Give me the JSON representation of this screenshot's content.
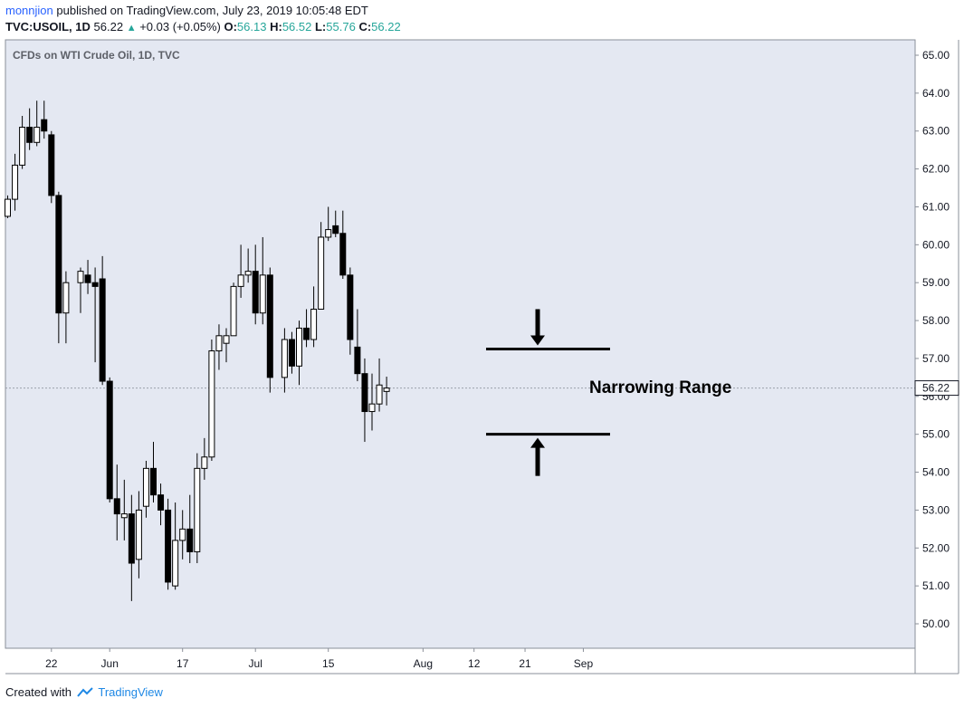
{
  "header": {
    "user": "monnjion",
    "published_text": "published on TradingView.com, July 23, 2019 10:05:48 EDT",
    "symbol": "TVC:USOIL, 1D",
    "last": "56.22",
    "change": "+0.03 (+0.05%)",
    "o_label": "O:",
    "o_value": "56.13",
    "h_label": "H:",
    "h_value": "56.52",
    "l_label": "L:",
    "l_value": "55.76",
    "c_label": "C:",
    "c_value": "56.22"
  },
  "footer": {
    "created_with": "Created with",
    "brand": "TradingView"
  },
  "colors": {
    "background": "#e4e8f2",
    "candle": "#000000",
    "value_up": "#26a69a",
    "link": "#2962ff"
  },
  "chart_data": {
    "type": "candlestick",
    "title": "CFDs on WTI Crude Oil, 1D, TVC",
    "ylim": [
      49.4,
      65.5
    ],
    "y_ticks": [
      50,
      51,
      52,
      53,
      54,
      55,
      56,
      57,
      58,
      59,
      60,
      61,
      62,
      63,
      64,
      65
    ],
    "y_tick_labels": [
      "50.00",
      "51.00",
      "52.00",
      "53.00",
      "54.00",
      "55.00",
      "56.00",
      "57.00",
      "58.00",
      "59.00",
      "60.00",
      "61.00",
      "62.00",
      "63.00",
      "64.00",
      "65.00"
    ],
    "x_tick_labels": [
      {
        "label": "22",
        "date": "2019-05-22"
      },
      {
        "label": "Jun",
        "date": "2019-06-03"
      },
      {
        "label": "17",
        "date": "2019-06-17"
      },
      {
        "label": "Jul",
        "date": "2019-07-01"
      },
      {
        "label": "15",
        "date": "2019-07-15"
      },
      {
        "label": "Aug",
        "date": "2019-08-01"
      },
      {
        "label": "12",
        "date": "2019-08-12"
      },
      {
        "label": "21",
        "date": "2019-08-21"
      },
      {
        "label": "Sep",
        "date": "2019-09-02"
      }
    ],
    "last_price": 56.22,
    "last_price_label": "56.22",
    "annotation": {
      "text": "Narrowing Range",
      "upper_level": 57.25,
      "lower_level": 55.0
    },
    "candles": [
      {
        "date": "2019-05-14",
        "o": 60.75,
        "h": 61.3,
        "l": 60.7,
        "c": 61.2
      },
      {
        "date": "2019-05-15",
        "o": 61.2,
        "h": 62.4,
        "l": 60.9,
        "c": 62.1
      },
      {
        "date": "2019-05-16",
        "o": 62.1,
        "h": 63.4,
        "l": 62.0,
        "c": 63.1
      },
      {
        "date": "2019-05-17",
        "o": 63.1,
        "h": 63.6,
        "l": 62.5,
        "c": 62.7
      },
      {
        "date": "2019-05-20",
        "o": 62.7,
        "h": 63.8,
        "l": 62.6,
        "c": 63.1
      },
      {
        "date": "2019-05-21",
        "o": 63.3,
        "h": 63.8,
        "l": 62.8,
        "c": 63.0
      },
      {
        "date": "2019-05-22",
        "o": 62.9,
        "h": 63.0,
        "l": 61.1,
        "c": 61.3
      },
      {
        "date": "2019-05-23",
        "o": 61.3,
        "h": 61.4,
        "l": 57.4,
        "c": 58.2
      },
      {
        "date": "2019-05-24",
        "o": 58.2,
        "h": 59.3,
        "l": 57.4,
        "c": 59.0
      },
      {
        "date": "2019-05-28",
        "o": 59.0,
        "h": 59.4,
        "l": 58.2,
        "c": 59.3
      },
      {
        "date": "2019-05-29",
        "o": 59.2,
        "h": 59.6,
        "l": 58.7,
        "c": 59.0
      },
      {
        "date": "2019-05-30",
        "o": 59.0,
        "h": 59.4,
        "l": 56.9,
        "c": 58.9
      },
      {
        "date": "2019-05-31",
        "o": 59.1,
        "h": 59.7,
        "l": 56.3,
        "c": 56.4
      },
      {
        "date": "2019-06-03",
        "o": 56.4,
        "h": 56.5,
        "l": 53.2,
        "c": 53.3
      },
      {
        "date": "2019-06-04",
        "o": 53.3,
        "h": 54.2,
        "l": 52.2,
        "c": 52.9
      },
      {
        "date": "2019-06-05",
        "o": 52.8,
        "h": 53.8,
        "l": 52.2,
        "c": 52.9
      },
      {
        "date": "2019-06-06",
        "o": 52.9,
        "h": 53.4,
        "l": 50.6,
        "c": 51.6
      },
      {
        "date": "2019-06-07",
        "o": 51.7,
        "h": 53.5,
        "l": 51.2,
        "c": 53.0
      },
      {
        "date": "2019-06-10",
        "o": 53.1,
        "h": 54.3,
        "l": 52.8,
        "c": 54.1
      },
      {
        "date": "2019-06-11",
        "o": 54.1,
        "h": 54.8,
        "l": 53.2,
        "c": 53.4
      },
      {
        "date": "2019-06-12",
        "o": 53.4,
        "h": 53.7,
        "l": 52.6,
        "c": 53.0
      },
      {
        "date": "2019-06-13",
        "o": 53.0,
        "h": 53.3,
        "l": 50.9,
        "c": 51.1
      },
      {
        "date": "2019-06-14",
        "o": 51.0,
        "h": 53.2,
        "l": 50.9,
        "c": 52.2
      },
      {
        "date": "2019-06-17",
        "o": 52.2,
        "h": 53.0,
        "l": 51.7,
        "c": 52.5
      },
      {
        "date": "2019-06-18",
        "o": 52.5,
        "h": 53.4,
        "l": 51.6,
        "c": 51.9
      },
      {
        "date": "2019-06-19",
        "o": 51.9,
        "h": 54.5,
        "l": 51.6,
        "c": 54.1
      },
      {
        "date": "2019-06-20",
        "o": 54.1,
        "h": 54.9,
        "l": 53.8,
        "c": 54.4
      },
      {
        "date": "2019-06-21",
        "o": 54.4,
        "h": 57.5,
        "l": 54.3,
        "c": 57.2
      },
      {
        "date": "2019-06-24",
        "o": 57.2,
        "h": 57.9,
        "l": 56.7,
        "c": 57.6
      },
      {
        "date": "2019-06-25",
        "o": 57.4,
        "h": 57.8,
        "l": 56.9,
        "c": 57.6
      },
      {
        "date": "2019-06-26",
        "o": 57.6,
        "h": 59.0,
        "l": 57.6,
        "c": 58.9
      },
      {
        "date": "2019-06-27",
        "o": 58.9,
        "h": 60.0,
        "l": 58.6,
        "c": 59.2
      },
      {
        "date": "2019-06-28",
        "o": 59.2,
        "h": 59.9,
        "l": 59.0,
        "c": 59.3
      },
      {
        "date": "2019-07-01",
        "o": 59.3,
        "h": 60.0,
        "l": 57.9,
        "c": 58.2
      },
      {
        "date": "2019-07-02",
        "o": 58.2,
        "h": 60.2,
        "l": 57.9,
        "c": 59.2
      },
      {
        "date": "2019-07-03",
        "o": 59.2,
        "h": 59.4,
        "l": 56.1,
        "c": 56.5
      },
      {
        "date": "2019-07-05",
        "o": 56.5,
        "h": 57.8,
        "l": 56.1,
        "c": 57.5
      },
      {
        "date": "2019-07-08",
        "o": 57.5,
        "h": 57.7,
        "l": 56.6,
        "c": 56.8
      },
      {
        "date": "2019-07-09",
        "o": 56.8,
        "h": 58.0,
        "l": 56.3,
        "c": 57.8
      },
      {
        "date": "2019-07-10",
        "o": 57.8,
        "h": 58.3,
        "l": 57.3,
        "c": 57.5
      },
      {
        "date": "2019-07-11",
        "o": 57.5,
        "h": 58.9,
        "l": 57.3,
        "c": 58.3
      },
      {
        "date": "2019-07-12",
        "o": 58.3,
        "h": 60.6,
        "l": 58.3,
        "c": 60.2
      },
      {
        "date": "2019-07-15",
        "o": 60.2,
        "h": 61.0,
        "l": 60.1,
        "c": 60.4
      },
      {
        "date": "2019-07-16",
        "o": 60.5,
        "h": 60.9,
        "l": 60.2,
        "c": 60.3
      },
      {
        "date": "2019-07-17",
        "o": 60.3,
        "h": 60.9,
        "l": 59.1,
        "c": 59.2
      },
      {
        "date": "2019-07-18",
        "o": 59.2,
        "h": 59.4,
        "l": 57.1,
        "c": 57.5
      },
      {
        "date": "2019-07-19",
        "o": 57.3,
        "h": 58.3,
        "l": 56.4,
        "c": 56.6
      },
      {
        "date": "2019-07-22",
        "o": 56.6,
        "h": 57.0,
        "l": 54.8,
        "c": 55.6
      },
      {
        "date": "2019-07-23",
        "o": 55.6,
        "h": 56.6,
        "l": 55.1,
        "c": 55.8
      },
      {
        "date": "2019-07-24",
        "o": 55.8,
        "h": 57.0,
        "l": 55.6,
        "c": 56.3
      },
      {
        "date": "2019-07-25",
        "o": 56.13,
        "h": 56.52,
        "l": 55.76,
        "c": 56.22
      }
    ]
  }
}
